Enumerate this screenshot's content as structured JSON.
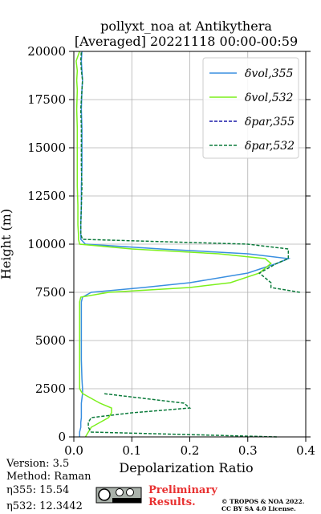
{
  "chart_data": {
    "type": "profile",
    "title": "pollyxt_noa at Antikythera",
    "subtitle": "[Averaged] 20221118 00:00-00:59",
    "xlabel": "Depolarization Ratio",
    "ylabel": "Height (m)",
    "xlim": [
      0,
      0.4
    ],
    "ylim": [
      0,
      20000
    ],
    "xticks": [
      {
        "value": 0,
        "label": "0.0"
      },
      0.1,
      0.2,
      0.3,
      0.4
    ],
    "yticks": [
      0,
      2500,
      5000,
      7500,
      10000,
      12500,
      15000,
      17500,
      20000
    ],
    "grid": true,
    "legend": "upper right",
    "heights": [
      0,
      250,
      500,
      750,
      1000,
      1250,
      1500,
      1750,
      2000,
      2250,
      2500,
      3000,
      4000,
      5000,
      6000,
      7000,
      7250,
      7500,
      7750,
      8000,
      8500,
      9000,
      9250,
      9500,
      9750,
      10000,
      10250,
      10500,
      11000,
      12000,
      13000,
      14000,
      15000,
      16000,
      17000,
      18000,
      18500,
      19000,
      19500,
      20000
    ],
    "series": [
      {
        "name": "δvol,355",
        "color": "#3a8fe0",
        "dash": false,
        "values": [
          0.01,
          0.01,
          0.012,
          0.012,
          0.013,
          0.013,
          0.013,
          0.013,
          0.014,
          0.015,
          0.015,
          0.014,
          0.013,
          0.013,
          0.013,
          0.013,
          0.015,
          0.03,
          0.12,
          0.2,
          0.3,
          0.35,
          0.37,
          0.3,
          0.15,
          0.02,
          0.012,
          0.012,
          0.012,
          0.013,
          0.013,
          0.014,
          0.014,
          0.014,
          0.013,
          0.014,
          0.015,
          0.014,
          0.013,
          0.014
        ]
      },
      {
        "name": "δvol,532",
        "color": "#7cf01c",
        "dash": false,
        "values": [
          0.02,
          0.025,
          0.03,
          0.045,
          0.06,
          0.065,
          0.065,
          0.045,
          0.03,
          0.015,
          0.01,
          0.01,
          0.01,
          0.01,
          0.01,
          0.01,
          0.012,
          0.06,
          0.2,
          0.27,
          0.32,
          0.34,
          0.33,
          0.25,
          0.1,
          0.01,
          0.008,
          0.008,
          0.007,
          0.007,
          0.006,
          0.006,
          0.006,
          0.006,
          0.005,
          0.006,
          0.005,
          0.006,
          0.004,
          0.01
        ]
      },
      {
        "name": "δpar,355",
        "color": "#1a1aa8",
        "dash": true,
        "values": [
          null,
          null,
          null,
          null,
          null,
          null,
          null,
          null,
          null,
          null,
          null,
          null,
          null,
          null,
          null,
          null,
          null,
          null,
          null,
          null,
          null,
          null,
          null,
          null,
          null,
          null,
          null,
          null,
          null,
          null,
          null,
          null,
          null,
          null,
          null,
          null,
          null,
          null,
          null,
          null
        ]
      },
      {
        "name": "δpar,532",
        "color": "#0a7a3a",
        "dash": true,
        "values": [
          0.35,
          0.03,
          0.025,
          0.025,
          0.03,
          0.1,
          0.2,
          0.19,
          0.12,
          0.05,
          null,
          null,
          null,
          null,
          null,
          null,
          null,
          0.39,
          0.34,
          0.34,
          0.32,
          0.35,
          0.37,
          0.37,
          0.37,
          0.3,
          0.015,
          0.012,
          0.012,
          0.013,
          0.014,
          0.013,
          0.013,
          0.013,
          0.012,
          0.014,
          0.015,
          0.013,
          0.012,
          0.013
        ]
      }
    ]
  },
  "footer": {
    "version": "Version: 3.5",
    "method": "Method: Raman",
    "eta355": "η355:  15.54",
    "eta532": "η532: 12.3442",
    "preliminary": "Preliminary",
    "results": "Results.",
    "copyright": "© TROPOS & NOA 2022.",
    "license": "CC BY SA 4.0 License."
  }
}
